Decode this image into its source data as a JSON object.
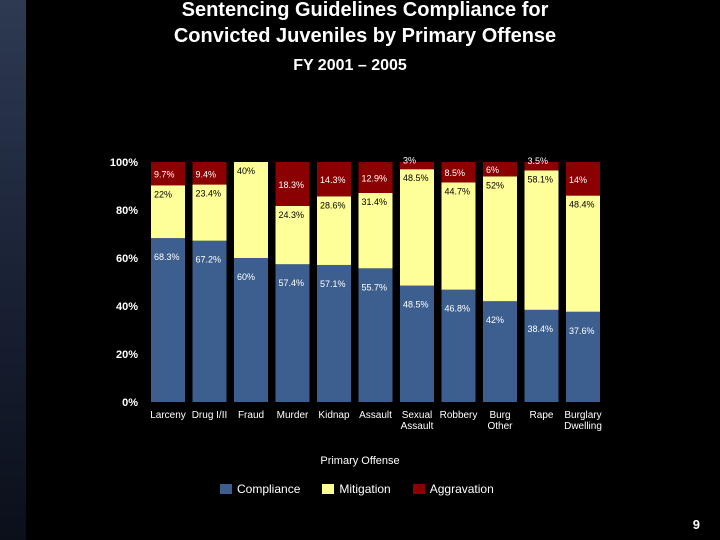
{
  "slide": {
    "title_line1": "Sentencing Guidelines Compliance  for",
    "title_line2": "Convicted Juveniles by Primary Offense",
    "subtitle": "FY 2001 – 2005",
    "page_number": "9"
  },
  "colors": {
    "compliance": "#3d5f8f",
    "mitigation": "#ffff99",
    "aggravation": "#8b0000",
    "background": "#000000"
  },
  "chart_data": {
    "type": "bar",
    "stacked": true,
    "title": "",
    "xlabel": "Primary Offense",
    "ylabel": "",
    "ylim": [
      0,
      100
    ],
    "yticks": [
      "0%",
      "20%",
      "40%",
      "60%",
      "80%",
      "100%"
    ],
    "categories": [
      [
        "Larceny"
      ],
      [
        "Drug I/II"
      ],
      [
        "Fraud"
      ],
      [
        "Murder"
      ],
      [
        "Kidnap"
      ],
      [
        "Assault"
      ],
      [
        "Sexual",
        "Assault"
      ],
      [
        "Robbery"
      ],
      [
        "Burg",
        "Other"
      ],
      [
        "Rape"
      ],
      [
        "Burglary",
        "Dwelling"
      ]
    ],
    "series": [
      {
        "name": "Compliance",
        "values": [
          68.3,
          67.2,
          60,
          57.4,
          57.1,
          55.7,
          48.5,
          46.8,
          42,
          38.4,
          37.6
        ],
        "labels": [
          "68.3%",
          "67.2%",
          "60%",
          "57.4%",
          "57.1%",
          "55.7%",
          "48.5%",
          "46.8%",
          "42%",
          "38.4%",
          "37.6%"
        ]
      },
      {
        "name": "Mitigation",
        "values": [
          22,
          23.4,
          40,
          24.3,
          28.6,
          31.4,
          48.5,
          44.7,
          52,
          58.1,
          48.4
        ],
        "labels": [
          "22%",
          "23.4%",
          "40%",
          "24.3%",
          "28.6%",
          "31.4%",
          "48.5%",
          "44.7%",
          "52%",
          "58.1%",
          "48.4%"
        ]
      },
      {
        "name": "Aggravation",
        "values": [
          9.7,
          9.4,
          0,
          18.3,
          14.3,
          12.9,
          3,
          8.5,
          6,
          3.5,
          14
        ],
        "labels": [
          "9.7%",
          "9.4%",
          "",
          "18.3%",
          "14.3%",
          "12.9%",
          "3%",
          "8.5%",
          "6%",
          "3.5%",
          "14%"
        ]
      }
    ],
    "legend": "bottom"
  }
}
